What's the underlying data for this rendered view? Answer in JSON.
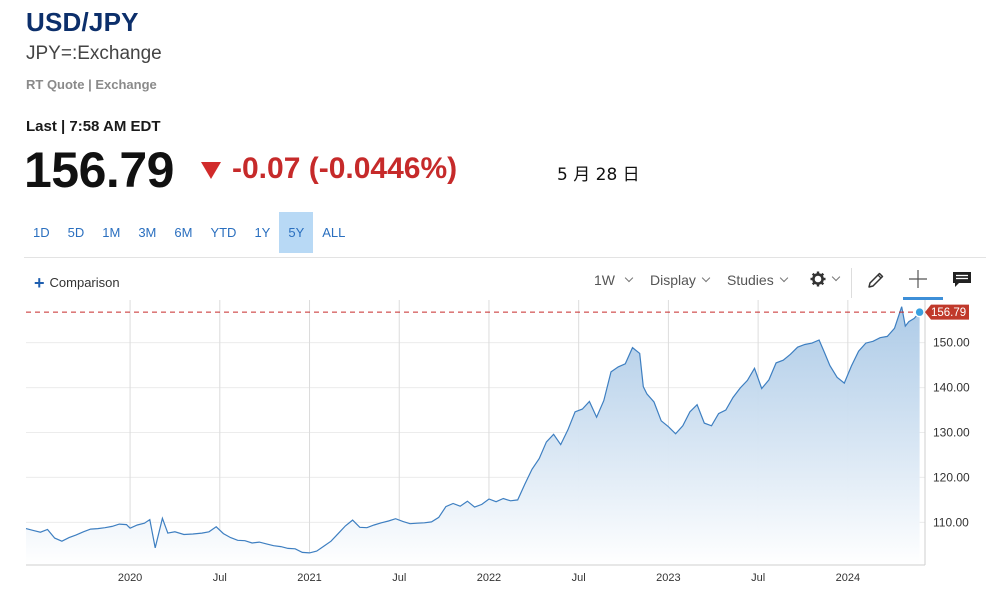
{
  "header": {
    "title": "USD/JPY",
    "subtitle": "JPY=:Exchange",
    "quote_type": "RT Quote | Exchange",
    "last_time": "Last | 7:58 AM EDT",
    "price": "156.79",
    "change": "-0.07 (-0.0446%)",
    "date_label": "5 月 28 日"
  },
  "range_tabs": {
    "items": [
      "1D",
      "5D",
      "1M",
      "3M",
      "6M",
      "YTD",
      "1Y",
      "5Y",
      "ALL"
    ],
    "active": "5Y"
  },
  "toolbar": {
    "comparison_label": "Comparison",
    "interval_label": "1W",
    "display_label": "Display",
    "studies_label": "Studies",
    "icons": [
      "gear-icon",
      "pencil-icon",
      "crosshair-icon",
      "comment-icon"
    ]
  },
  "colors": {
    "line": "#3e7fc1",
    "fill_top": "#a9c8e6",
    "negative": "#c62a2a",
    "price_tag": "#c0392b",
    "active_tab": "#b8d9f5",
    "title": "#0c2f6b"
  },
  "chart_data": {
    "type": "area",
    "series": [
      {
        "values": [
          [
            2019.42,
            108.6
          ],
          [
            2019.46,
            108.2
          ],
          [
            2019.5,
            107.8
          ],
          [
            2019.54,
            108.4
          ],
          [
            2019.58,
            106.5
          ],
          [
            2019.62,
            105.8
          ],
          [
            2019.66,
            106.6
          ],
          [
            2019.7,
            107.2
          ],
          [
            2019.74,
            107.9
          ],
          [
            2019.78,
            108.5
          ],
          [
            2019.82,
            108.6
          ],
          [
            2019.86,
            108.8
          ],
          [
            2019.9,
            109.1
          ],
          [
            2019.94,
            109.6
          ],
          [
            2019.98,
            109.5
          ],
          [
            2020.0,
            108.7
          ],
          [
            2020.04,
            109.4
          ],
          [
            2020.08,
            109.8
          ],
          [
            2020.11,
            110.6
          ],
          [
            2020.14,
            104.3
          ],
          [
            2020.18,
            110.9
          ],
          [
            2020.21,
            107.6
          ],
          [
            2020.25,
            107.9
          ],
          [
            2020.3,
            107.3
          ],
          [
            2020.35,
            107.4
          ],
          [
            2020.4,
            107.6
          ],
          [
            2020.44,
            107.9
          ],
          [
            2020.48,
            109.0
          ],
          [
            2020.52,
            107.5
          ],
          [
            2020.56,
            106.6
          ],
          [
            2020.6,
            106.0
          ],
          [
            2020.64,
            105.9
          ],
          [
            2020.68,
            105.4
          ],
          [
            2020.72,
            105.6
          ],
          [
            2020.76,
            105.2
          ],
          [
            2020.8,
            104.8
          ],
          [
            2020.84,
            104.6
          ],
          [
            2020.88,
            104.2
          ],
          [
            2020.92,
            104.1
          ],
          [
            2020.96,
            103.3
          ],
          [
            2021.0,
            103.2
          ],
          [
            2021.04,
            103.6
          ],
          [
            2021.08,
            104.7
          ],
          [
            2021.12,
            105.8
          ],
          [
            2021.16,
            107.5
          ],
          [
            2021.2,
            109.2
          ],
          [
            2021.24,
            110.5
          ],
          [
            2021.28,
            108.9
          ],
          [
            2021.32,
            108.8
          ],
          [
            2021.36,
            109.4
          ],
          [
            2021.4,
            109.9
          ],
          [
            2021.44,
            110.3
          ],
          [
            2021.48,
            110.8
          ],
          [
            2021.52,
            110.2
          ],
          [
            2021.56,
            109.7
          ],
          [
            2021.6,
            109.8
          ],
          [
            2021.64,
            109.9
          ],
          [
            2021.68,
            110.1
          ],
          [
            2021.72,
            111.1
          ],
          [
            2021.76,
            113.5
          ],
          [
            2021.8,
            114.2
          ],
          [
            2021.84,
            113.6
          ],
          [
            2021.88,
            114.7
          ],
          [
            2021.92,
            113.4
          ],
          [
            2021.96,
            114.0
          ],
          [
            2022.0,
            115.2
          ],
          [
            2022.04,
            114.6
          ],
          [
            2022.08,
            115.3
          ],
          [
            2022.12,
            114.8
          ],
          [
            2022.16,
            115.0
          ],
          [
            2022.2,
            118.5
          ],
          [
            2022.24,
            121.8
          ],
          [
            2022.28,
            124.2
          ],
          [
            2022.32,
            127.9
          ],
          [
            2022.36,
            129.6
          ],
          [
            2022.4,
            127.3
          ],
          [
            2022.44,
            130.6
          ],
          [
            2022.48,
            134.6
          ],
          [
            2022.52,
            135.2
          ],
          [
            2022.56,
            136.9
          ],
          [
            2022.6,
            133.4
          ],
          [
            2022.64,
            137.1
          ],
          [
            2022.68,
            143.5
          ],
          [
            2022.72,
            144.6
          ],
          [
            2022.76,
            145.3
          ],
          [
            2022.8,
            148.9
          ],
          [
            2022.84,
            147.6
          ],
          [
            2022.86,
            140.2
          ],
          [
            2022.88,
            138.6
          ],
          [
            2022.92,
            136.8
          ],
          [
            2022.96,
            132.6
          ],
          [
            2023.0,
            131.3
          ],
          [
            2023.04,
            129.7
          ],
          [
            2023.08,
            131.5
          ],
          [
            2023.12,
            134.6
          ],
          [
            2023.16,
            136.2
          ],
          [
            2023.2,
            132.1
          ],
          [
            2023.24,
            131.5
          ],
          [
            2023.28,
            134.2
          ],
          [
            2023.32,
            135.0
          ],
          [
            2023.36,
            137.8
          ],
          [
            2023.4,
            139.9
          ],
          [
            2023.44,
            141.6
          ],
          [
            2023.48,
            144.3
          ],
          [
            2023.52,
            139.8
          ],
          [
            2023.56,
            141.7
          ],
          [
            2023.6,
            145.5
          ],
          [
            2023.64,
            146.1
          ],
          [
            2023.68,
            147.4
          ],
          [
            2023.72,
            149.0
          ],
          [
            2023.76,
            149.6
          ],
          [
            2023.8,
            149.9
          ],
          [
            2023.84,
            150.6
          ],
          [
            2023.87,
            147.8
          ],
          [
            2023.9,
            144.9
          ],
          [
            2023.94,
            142.3
          ],
          [
            2023.98,
            141.0
          ],
          [
            2024.02,
            144.8
          ],
          [
            2024.06,
            148.1
          ],
          [
            2024.1,
            149.9
          ],
          [
            2024.14,
            150.3
          ],
          [
            2024.18,
            151.1
          ],
          [
            2024.22,
            151.4
          ],
          [
            2024.26,
            153.2
          ],
          [
            2024.3,
            158.0
          ],
          [
            2024.32,
            153.7
          ],
          [
            2024.34,
            154.7
          ],
          [
            2024.37,
            155.4
          ],
          [
            2024.4,
            156.79
          ]
        ]
      }
    ],
    "x_ticks": [
      {
        "x": 2020.0,
        "label": "2020"
      },
      {
        "x": 2020.5,
        "label": "Jul"
      },
      {
        "x": 2021.0,
        "label": "2021"
      },
      {
        "x": 2021.5,
        "label": "Jul"
      },
      {
        "x": 2022.0,
        "label": "2022"
      },
      {
        "x": 2022.5,
        "label": "Jul"
      },
      {
        "x": 2023.0,
        "label": "2023"
      },
      {
        "x": 2023.5,
        "label": "Jul"
      },
      {
        "x": 2024.0,
        "label": "2024"
      }
    ],
    "y_ticks": [
      {
        "y": 110,
        "label": "110.00"
      },
      {
        "y": 120,
        "label": "120.00"
      },
      {
        "y": 130,
        "label": "130.00"
      },
      {
        "y": 140,
        "label": "140.00"
      },
      {
        "y": 150,
        "label": "150.00"
      }
    ],
    "xlim": [
      2019.42,
      2024.43
    ],
    "ylim": [
      100.5,
      159.5
    ],
    "reference_line": 156.79,
    "price_tag": "156.79",
    "grid": true
  }
}
